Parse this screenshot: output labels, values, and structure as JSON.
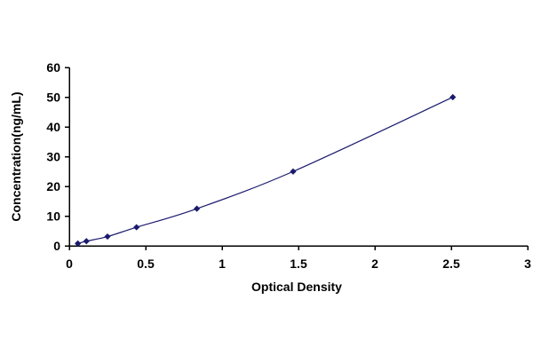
{
  "chart_data": {
    "type": "scatter",
    "title": "",
    "xlabel": "Optical Density",
    "ylabel": "Concentration(ng/mL)",
    "xlim": [
      0,
      3
    ],
    "ylim": [
      0,
      60
    ],
    "x_ticks": [
      "0",
      "0.5",
      "1",
      "1.5",
      "2",
      "2.5",
      "3"
    ],
    "y_ticks": [
      "0",
      "10",
      "20",
      "30",
      "40",
      "50",
      "60"
    ],
    "grid": false,
    "legend": "none",
    "series": [
      {
        "x": [
          0.056,
          0.112,
          0.25,
          0.44,
          0.835,
          1.465,
          2.51
        ],
        "y": [
          0.78,
          1.56,
          3.12,
          6.25,
          12.5,
          25,
          50
        ],
        "marker": "diamond",
        "line": "smooth"
      }
    ],
    "colors": {
      "line": "#1a1a6e",
      "marker": "#1a1a6e",
      "axis": "#000000"
    }
  }
}
